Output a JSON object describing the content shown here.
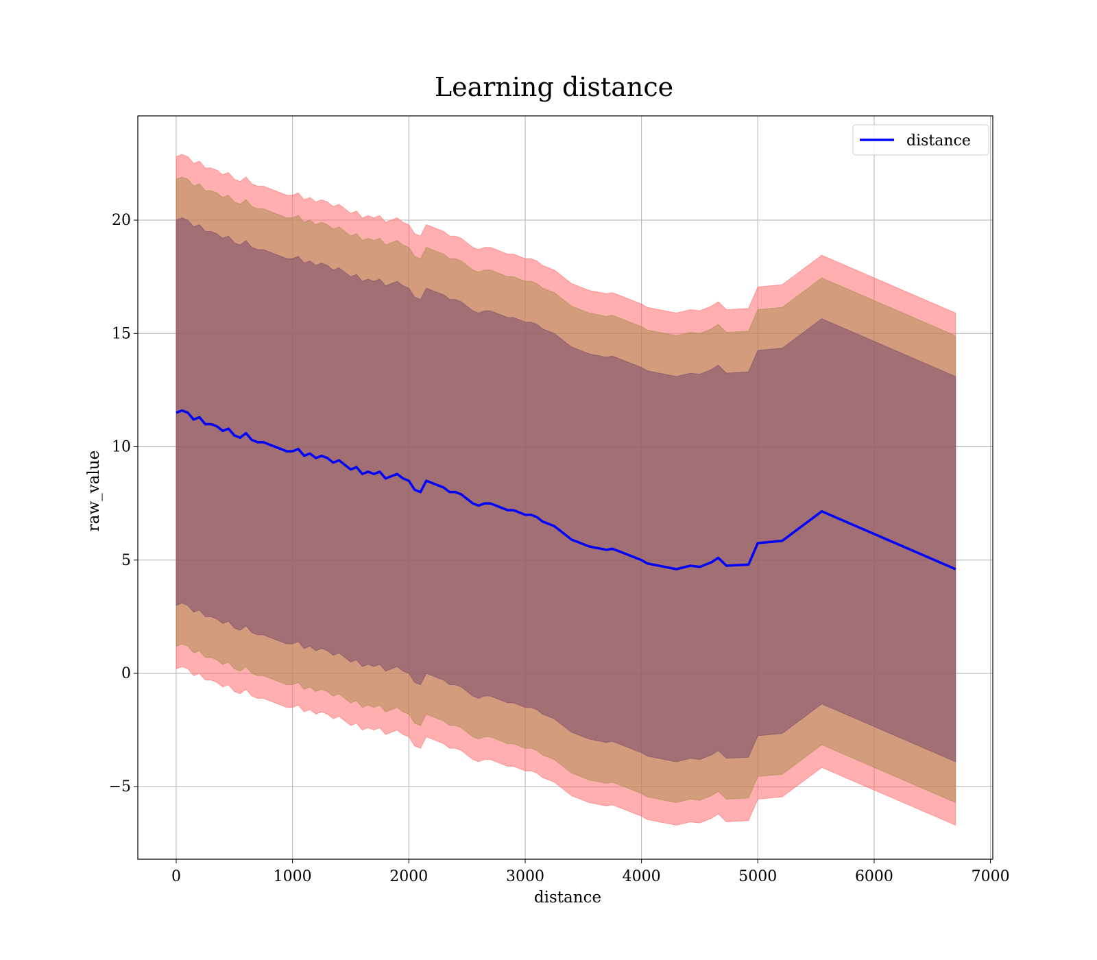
{
  "chart_data": {
    "type": "line",
    "title": "Learning distance",
    "xlabel": "distance",
    "ylabel": "raw_value",
    "xlim": [
      -330,
      7020
    ],
    "ylim": [
      -8.2,
      24.6
    ],
    "xticks": [
      0,
      1000,
      2000,
      3000,
      4000,
      5000,
      6000,
      7000
    ],
    "xtick_labels": [
      "0",
      "1000",
      "2000",
      "3000",
      "4000",
      "5000",
      "6000",
      "7000"
    ],
    "yticks": [
      -5,
      0,
      5,
      10,
      15,
      20
    ],
    "ytick_labels": [
      "−5",
      "0",
      "5",
      "10",
      "15",
      "20"
    ],
    "grid": true,
    "legend": {
      "placement": "top-right",
      "entries": [
        "distance"
      ]
    },
    "series": [
      {
        "name": "distance",
        "color": "#0000ff",
        "x": [
          0,
          50,
          100,
          150,
          200,
          250,
          300,
          350,
          400,
          450,
          500,
          550,
          600,
          650,
          700,
          750,
          800,
          850,
          900,
          950,
          1000,
          1050,
          1100,
          1150,
          1200,
          1250,
          1300,
          1350,
          1400,
          1450,
          1500,
          1550,
          1600,
          1650,
          1700,
          1750,
          1800,
          1850,
          1900,
          1950,
          2000,
          2050,
          2100,
          2150,
          2200,
          2250,
          2300,
          2350,
          2400,
          2450,
          2500,
          2550,
          2600,
          2650,
          2700,
          2750,
          2800,
          2850,
          2900,
          2950,
          3000,
          3050,
          3100,
          3150,
          3200,
          3250,
          3300,
          3350,
          3400,
          3450,
          3500,
          3550,
          3600,
          3650,
          3700,
          3750,
          3800,
          3850,
          3900,
          3950,
          4000,
          4050,
          4100,
          4150,
          4200,
          4300,
          4420,
          4500,
          4600,
          4660,
          4730,
          4920,
          5000,
          5210,
          5550,
          6700
        ],
        "y": [
          11.5,
          11.6,
          11.5,
          11.2,
          11.3,
          11.0,
          11.0,
          10.9,
          10.7,
          10.8,
          10.5,
          10.4,
          10.6,
          10.3,
          10.2,
          10.2,
          10.1,
          10.0,
          9.9,
          9.8,
          9.8,
          9.9,
          9.6,
          9.7,
          9.5,
          9.6,
          9.5,
          9.3,
          9.4,
          9.2,
          9.0,
          9.1,
          8.8,
          8.9,
          8.8,
          8.9,
          8.6,
          8.7,
          8.8,
          8.6,
          8.5,
          8.1,
          8.0,
          8.5,
          8.4,
          8.3,
          8.2,
          8.0,
          8.0,
          7.9,
          7.7,
          7.5,
          7.4,
          7.5,
          7.5,
          7.4,
          7.3,
          7.2,
          7.2,
          7.1,
          7.0,
          7.0,
          6.9,
          6.7,
          6.6,
          6.5,
          6.3,
          6.1,
          5.9,
          5.8,
          5.7,
          5.6,
          5.55,
          5.5,
          5.45,
          5.5,
          5.4,
          5.3,
          5.2,
          5.1,
          5.0,
          4.85,
          4.8,
          4.75,
          4.7,
          4.6,
          4.75,
          4.7,
          4.9,
          5.1,
          4.75,
          4.8,
          5.75,
          5.85,
          7.15,
          4.6
        ]
      }
    ],
    "bands": [
      {
        "color": "#ff6e6e",
        "offset": 11.3,
        "opacity": 0.55
      },
      {
        "color": "#a88a4c",
        "offset": 10.3,
        "opacity": 0.5
      },
      {
        "color": "#7a4a6e",
        "offset": 8.5,
        "opacity": 0.55
      }
    ]
  }
}
